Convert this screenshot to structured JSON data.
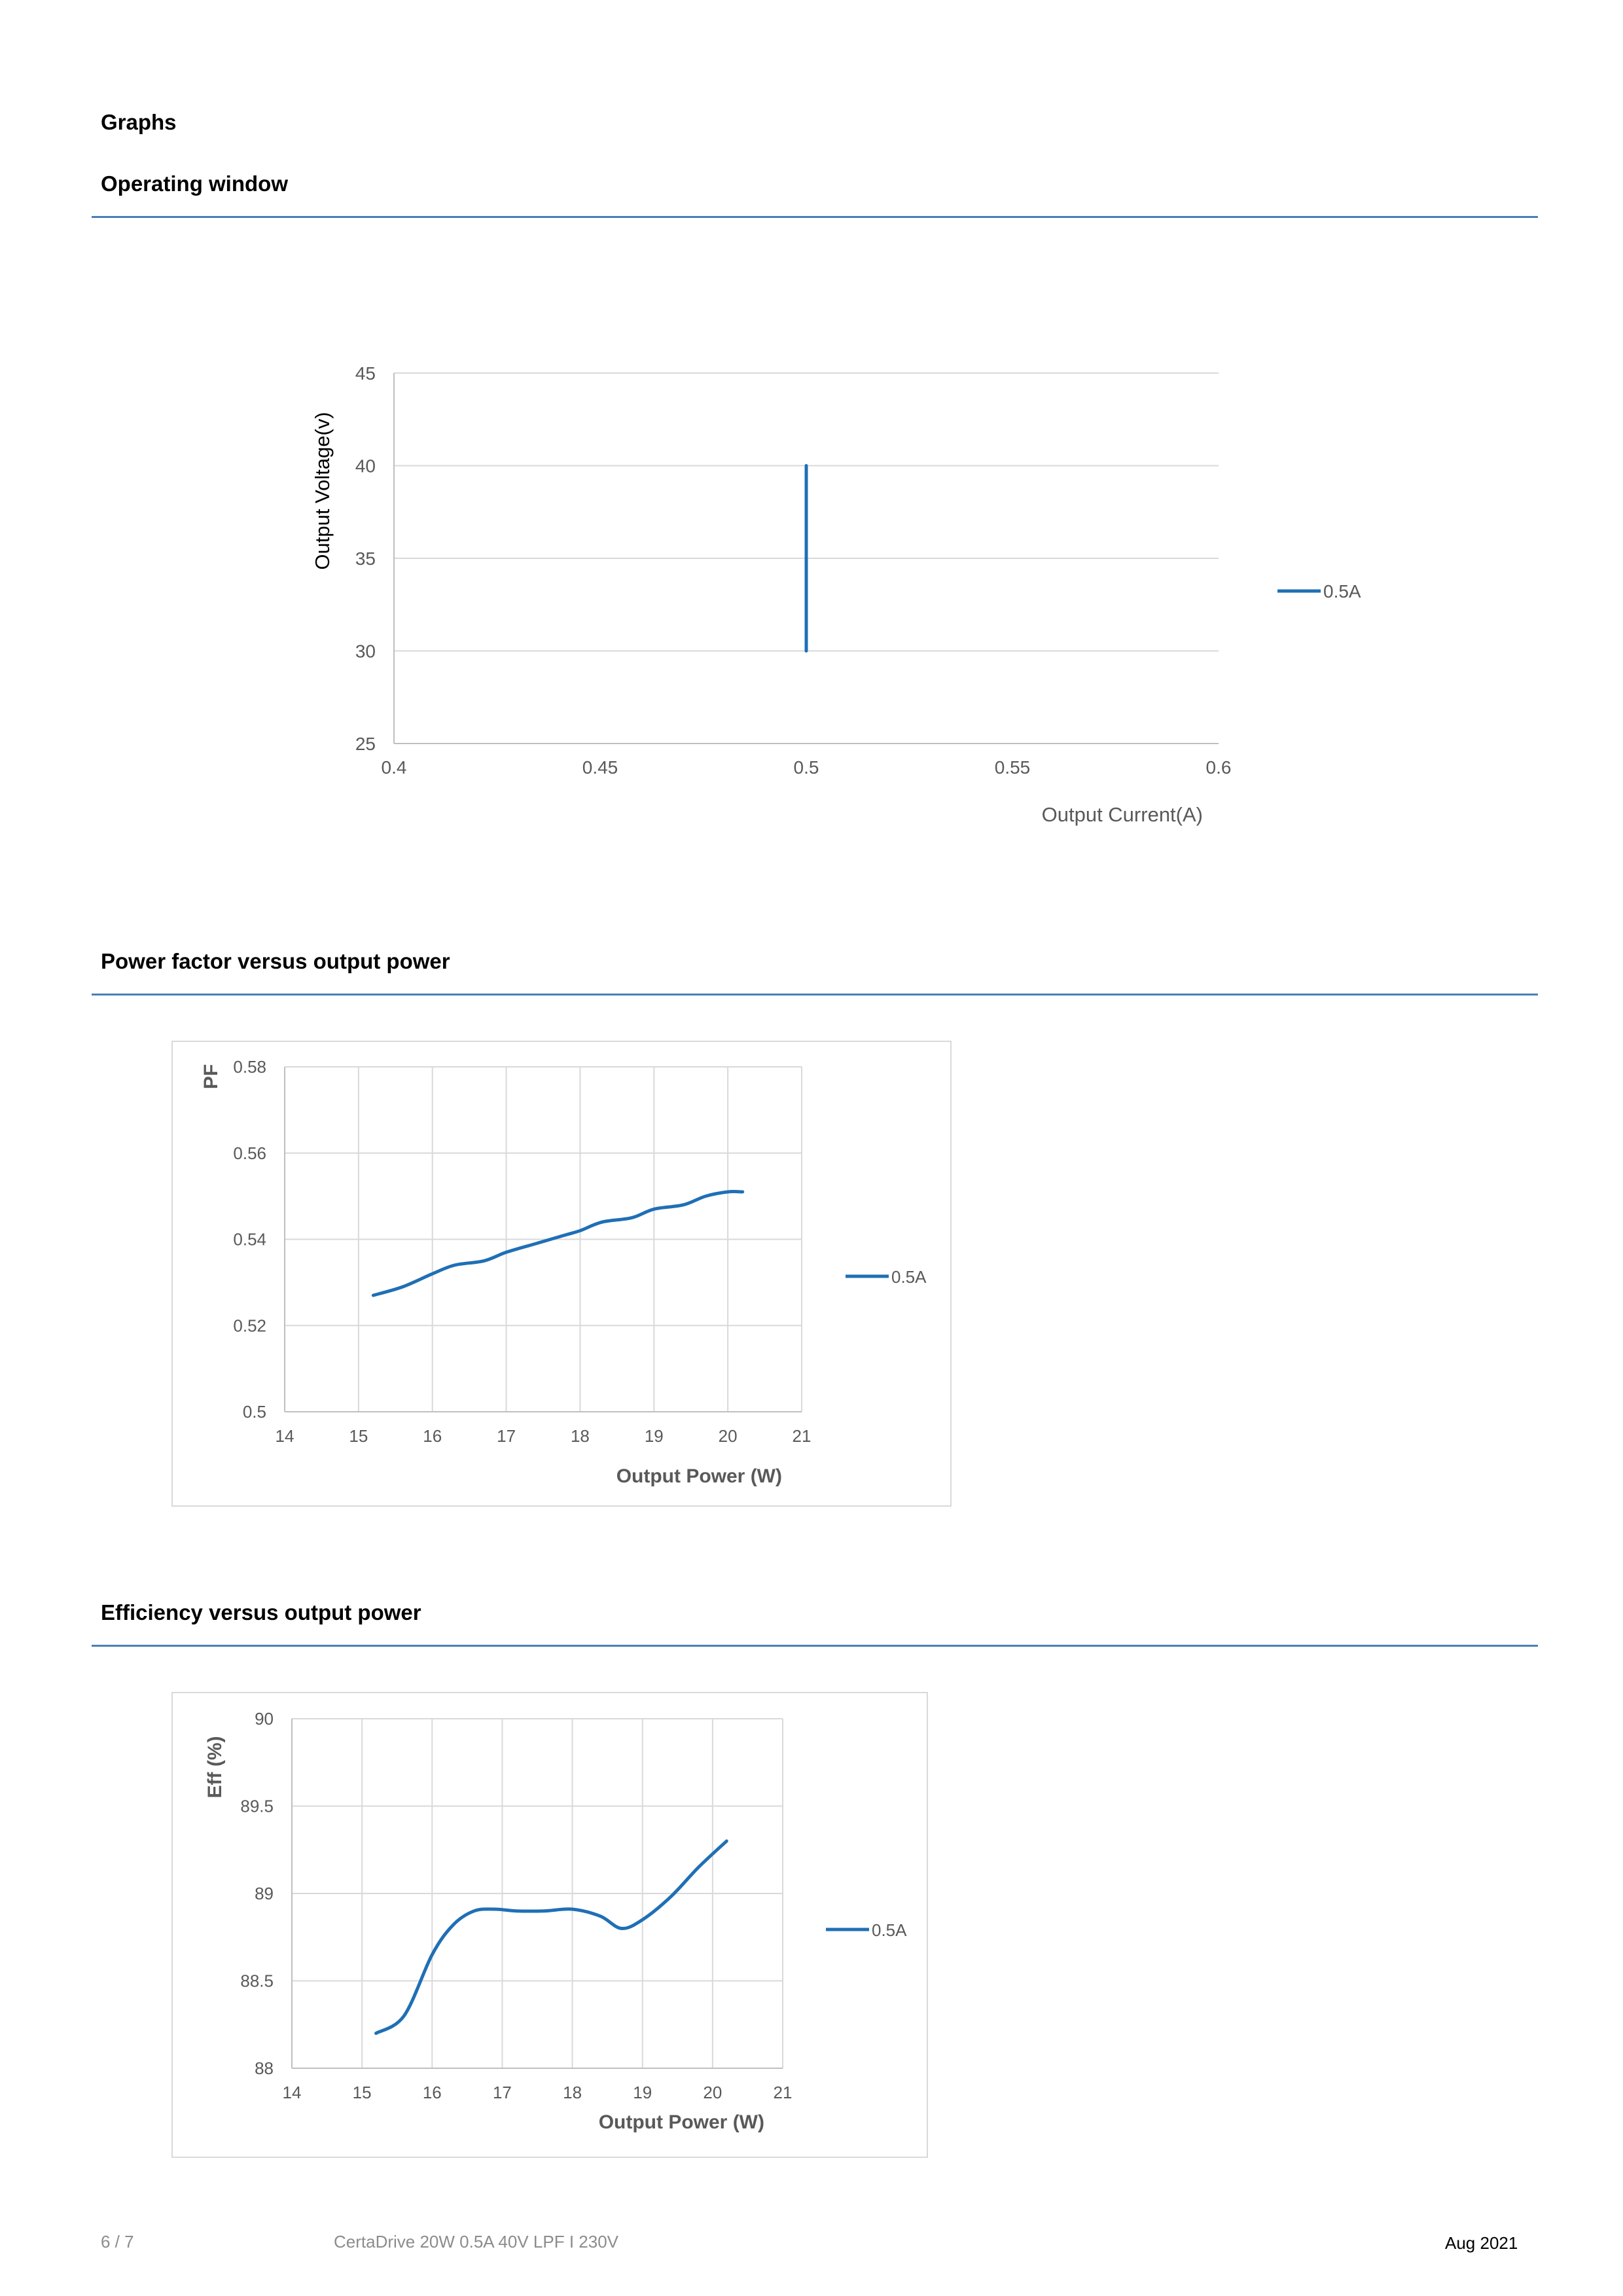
{
  "page": {
    "section_title": "Graphs",
    "sections": [
      {
        "title": "Operating window"
      },
      {
        "title": "Power factor versus output power"
      },
      {
        "title": "Efficiency versus output power"
      }
    ]
  },
  "footer": {
    "page_number": "6 / 7",
    "product": "CertaDrive 20W 0.5A 40V LPF I 230V",
    "date": "Aug 2021"
  },
  "colors": {
    "series": "#1f6fb5",
    "grid": "#d9d9d9",
    "axis_text": "#595959",
    "rule": "#4a7fb5"
  },
  "chart_data": [
    {
      "type": "line",
      "title": "",
      "xlabel": "Output Current(A)",
      "ylabel": "Output Voltage(v)",
      "xlim": [
        0.4,
        0.6
      ],
      "ylim": [
        25,
        45
      ],
      "x_ticks": [
        "0.4",
        "0.45",
        "0.5",
        "0.55",
        "0.6"
      ],
      "y_ticks": [
        "25",
        "30",
        "35",
        "40",
        "45"
      ],
      "grid": "horizontal",
      "legend": "right",
      "series": [
        {
          "name": "0.5A",
          "x": [
            0.5,
            0.5
          ],
          "y": [
            30,
            40
          ]
        }
      ]
    },
    {
      "type": "line",
      "title": "",
      "xlabel": "Output Power (W)",
      "ylabel": "PF",
      "xlim": [
        14,
        21
      ],
      "ylim": [
        0.5,
        0.58
      ],
      "x_ticks": [
        "14",
        "15",
        "16",
        "17",
        "18",
        "19",
        "20",
        "21"
      ],
      "y_ticks": [
        "0.5",
        "0.52",
        "0.54",
        "0.56",
        "0.58"
      ],
      "grid": "both",
      "legend": "right",
      "series": [
        {
          "name": "0.5A",
          "x": [
            15.2,
            15.6,
            16.0,
            16.3,
            16.7,
            17.0,
            17.4,
            17.8,
            18.0,
            18.3,
            18.7,
            19.0,
            19.4,
            19.7,
            20.0,
            20.2
          ],
          "y": [
            0.527,
            0.529,
            0.532,
            0.534,
            0.535,
            0.537,
            0.539,
            0.541,
            0.542,
            0.544,
            0.545,
            0.547,
            0.548,
            0.55,
            0.551,
            0.551
          ]
        }
      ]
    },
    {
      "type": "line",
      "title": "",
      "xlabel": "Output Power (W)",
      "ylabel": "Eff  (%)",
      "xlim": [
        14,
        21
      ],
      "ylim": [
        88,
        90
      ],
      "x_ticks": [
        "14",
        "15",
        "16",
        "17",
        "18",
        "19",
        "20",
        "21"
      ],
      "y_ticks": [
        "88",
        "88.5",
        "89",
        "89.5",
        "90"
      ],
      "grid": "both",
      "legend": "right",
      "series": [
        {
          "name": "0.5A",
          "x": [
            15.2,
            15.6,
            16.0,
            16.3,
            16.6,
            16.9,
            17.2,
            17.6,
            18.0,
            18.4,
            18.7,
            19.0,
            19.4,
            19.8,
            20.2
          ],
          "y": [
            88.2,
            88.3,
            88.65,
            88.82,
            88.9,
            88.91,
            88.9,
            88.9,
            88.91,
            88.87,
            88.8,
            88.85,
            88.98,
            89.15,
            89.3
          ]
        }
      ]
    }
  ]
}
